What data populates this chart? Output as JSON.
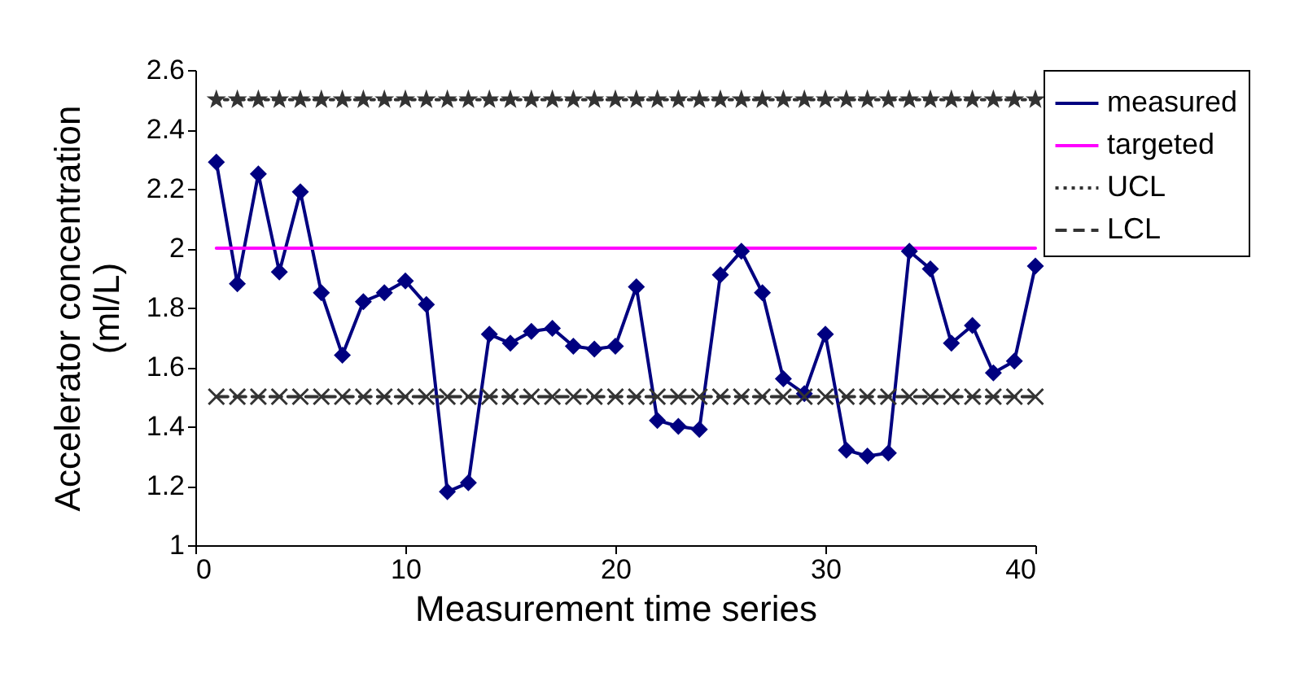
{
  "chart_data": {
    "type": "line",
    "xlabel": "Measurement time series",
    "ylabel": "Accelerator concentration (ml/L)",
    "x": [
      1,
      2,
      3,
      4,
      5,
      6,
      7,
      8,
      9,
      10,
      11,
      12,
      13,
      14,
      15,
      16,
      17,
      18,
      19,
      20,
      21,
      22,
      23,
      24,
      25,
      26,
      27,
      28,
      29,
      30,
      31,
      32,
      33,
      34,
      35,
      36,
      37,
      38,
      39,
      40
    ],
    "series": [
      {
        "name": "measured",
        "color": "#000080",
        "marker": "diamond",
        "line_style": "solid",
        "values": [
          2.29,
          1.88,
          2.25,
          1.92,
          2.19,
          1.85,
          1.64,
          1.82,
          1.85,
          1.89,
          1.81,
          1.18,
          1.21,
          1.71,
          1.68,
          1.72,
          1.73,
          1.67,
          1.66,
          1.67,
          1.87,
          1.42,
          1.4,
          1.39,
          1.91,
          1.99,
          1.85,
          1.56,
          1.51,
          1.71,
          1.32,
          1.3,
          1.31,
          1.99,
          1.93,
          1.68,
          1.74,
          1.58,
          1.62,
          1.94
        ]
      },
      {
        "name": "targeted",
        "color": "#ff00ff",
        "marker": "none",
        "line_style": "solid",
        "values": [
          2,
          2,
          2,
          2,
          2,
          2,
          2,
          2,
          2,
          2,
          2,
          2,
          2,
          2,
          2,
          2,
          2,
          2,
          2,
          2,
          2,
          2,
          2,
          2,
          2,
          2,
          2,
          2,
          2,
          2,
          2,
          2,
          2,
          2,
          2,
          2,
          2,
          2,
          2,
          2
        ]
      },
      {
        "name": "UCL",
        "color": "#333333",
        "marker": "star",
        "line_style": "dotted",
        "values": [
          2.5,
          2.5,
          2.5,
          2.5,
          2.5,
          2.5,
          2.5,
          2.5,
          2.5,
          2.5,
          2.5,
          2.5,
          2.5,
          2.5,
          2.5,
          2.5,
          2.5,
          2.5,
          2.5,
          2.5,
          2.5,
          2.5,
          2.5,
          2.5,
          2.5,
          2.5,
          2.5,
          2.5,
          2.5,
          2.5,
          2.5,
          2.5,
          2.5,
          2.5,
          2.5,
          2.5,
          2.5,
          2.5,
          2.5,
          2.5
        ]
      },
      {
        "name": "LCL",
        "color": "#333333",
        "marker": "cross",
        "line_style": "dashed",
        "values": [
          1.5,
          1.5,
          1.5,
          1.5,
          1.5,
          1.5,
          1.5,
          1.5,
          1.5,
          1.5,
          1.5,
          1.5,
          1.5,
          1.5,
          1.5,
          1.5,
          1.5,
          1.5,
          1.5,
          1.5,
          1.5,
          1.5,
          1.5,
          1.5,
          1.5,
          1.5,
          1.5,
          1.5,
          1.5,
          1.5,
          1.5,
          1.5,
          1.5,
          1.5,
          1.5,
          1.5,
          1.5,
          1.5,
          1.5,
          1.5
        ]
      }
    ],
    "xlim": [
      0,
      40
    ],
    "xticks": [
      0,
      10,
      20,
      30,
      40
    ],
    "ylim": [
      1,
      2.6
    ],
    "yticks": [
      1,
      1.2,
      1.4,
      1.6,
      1.8,
      2,
      2.2,
      2.4,
      2.6
    ],
    "legend": "top right",
    "grid": false
  }
}
